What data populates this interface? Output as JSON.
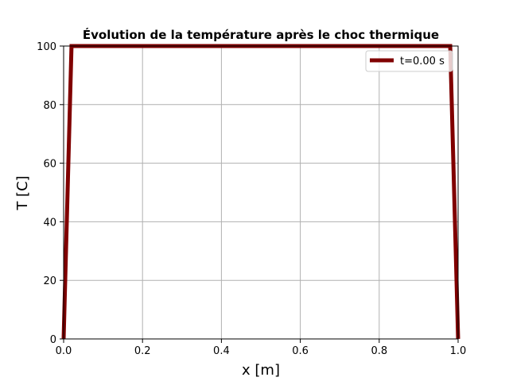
{
  "chart_data": {
    "type": "line",
    "title": "Évolution de la température après le choc thermique",
    "xlabel": "x [m]",
    "ylabel": "T [C]",
    "xlim": [
      0.0,
      1.0
    ],
    "ylim": [
      0,
      100
    ],
    "x_ticks": [
      "0.0",
      "0.2",
      "0.4",
      "0.6",
      "0.8",
      "1.0"
    ],
    "y_ticks": [
      "0",
      "20",
      "40",
      "60",
      "80",
      "100"
    ],
    "grid": true,
    "legend_position": "top-right",
    "series": [
      {
        "name": "t=0.00 s",
        "color": "#800000",
        "x": [
          0.0,
          0.02,
          0.98,
          1.0
        ],
        "y": [
          0,
          100,
          100,
          0
        ]
      }
    ]
  }
}
